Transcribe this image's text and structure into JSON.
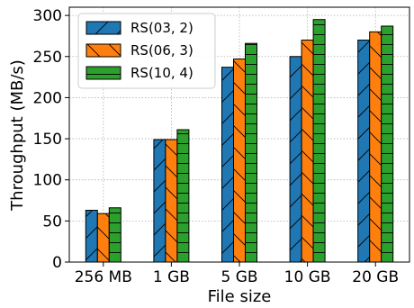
{
  "chart_data": {
    "type": "bar",
    "xlabel": "File size",
    "ylabel": "Throughput (MB/s)",
    "categories": [
      "256 MB",
      "1 GB",
      "5 GB",
      "10 GB",
      "20 GB"
    ],
    "ylim": [
      0,
      310
    ],
    "yticks": [
      0,
      50,
      100,
      150,
      200,
      250,
      300
    ],
    "grid": true,
    "legend_position": "top-left",
    "series": [
      {
        "name": "RS(03, 2)",
        "values": [
          63,
          149,
          237,
          250,
          270
        ],
        "color": "#1f77b4",
        "hatch": "forward-diagonal"
      },
      {
        "name": "RS(06, 3)",
        "values": [
          59,
          149,
          247,
          270,
          280
        ],
        "color": "#ff7f0e",
        "hatch": "back-diagonal"
      },
      {
        "name": "RS(10, 4)",
        "values": [
          66,
          161,
          266,
          295,
          287
        ],
        "color": "#2ca02c",
        "hatch": "horizontal"
      }
    ]
  }
}
